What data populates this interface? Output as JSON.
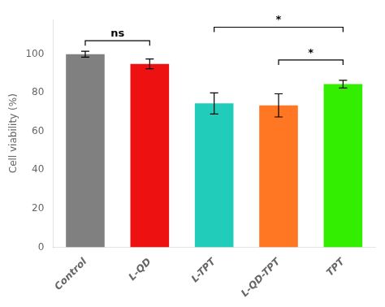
{
  "chart_data": {
    "type": "bar",
    "categories": [
      "Control",
      "L-QD",
      "L-TPT",
      "L-QD-TPT",
      "TPT"
    ],
    "values": [
      100.0,
      95.0,
      74.5,
      73.5,
      84.5
    ],
    "errors": [
      1.5,
      2.5,
      5.5,
      6.0,
      2.0
    ],
    "colors": [
      "#808080",
      "#ee1111",
      "#22ccbb",
      "#ff7722",
      "#33ee00"
    ],
    "ylabel": "Cell viability (%)",
    "ylim": [
      0,
      118
    ],
    "yticks": [
      0,
      20,
      40,
      60,
      80,
      100
    ],
    "grid": false,
    "significance": [
      {
        "bars": [
          "Control",
          "L-QD"
        ],
        "label": "ns",
        "y": 107
      },
      {
        "bars": [
          "L-TPT",
          "TPT"
        ],
        "label": "*",
        "y": 114
      },
      {
        "bars": [
          "L-QD-TPT",
          "TPT"
        ],
        "label": "*",
        "y": 97
      }
    ]
  }
}
